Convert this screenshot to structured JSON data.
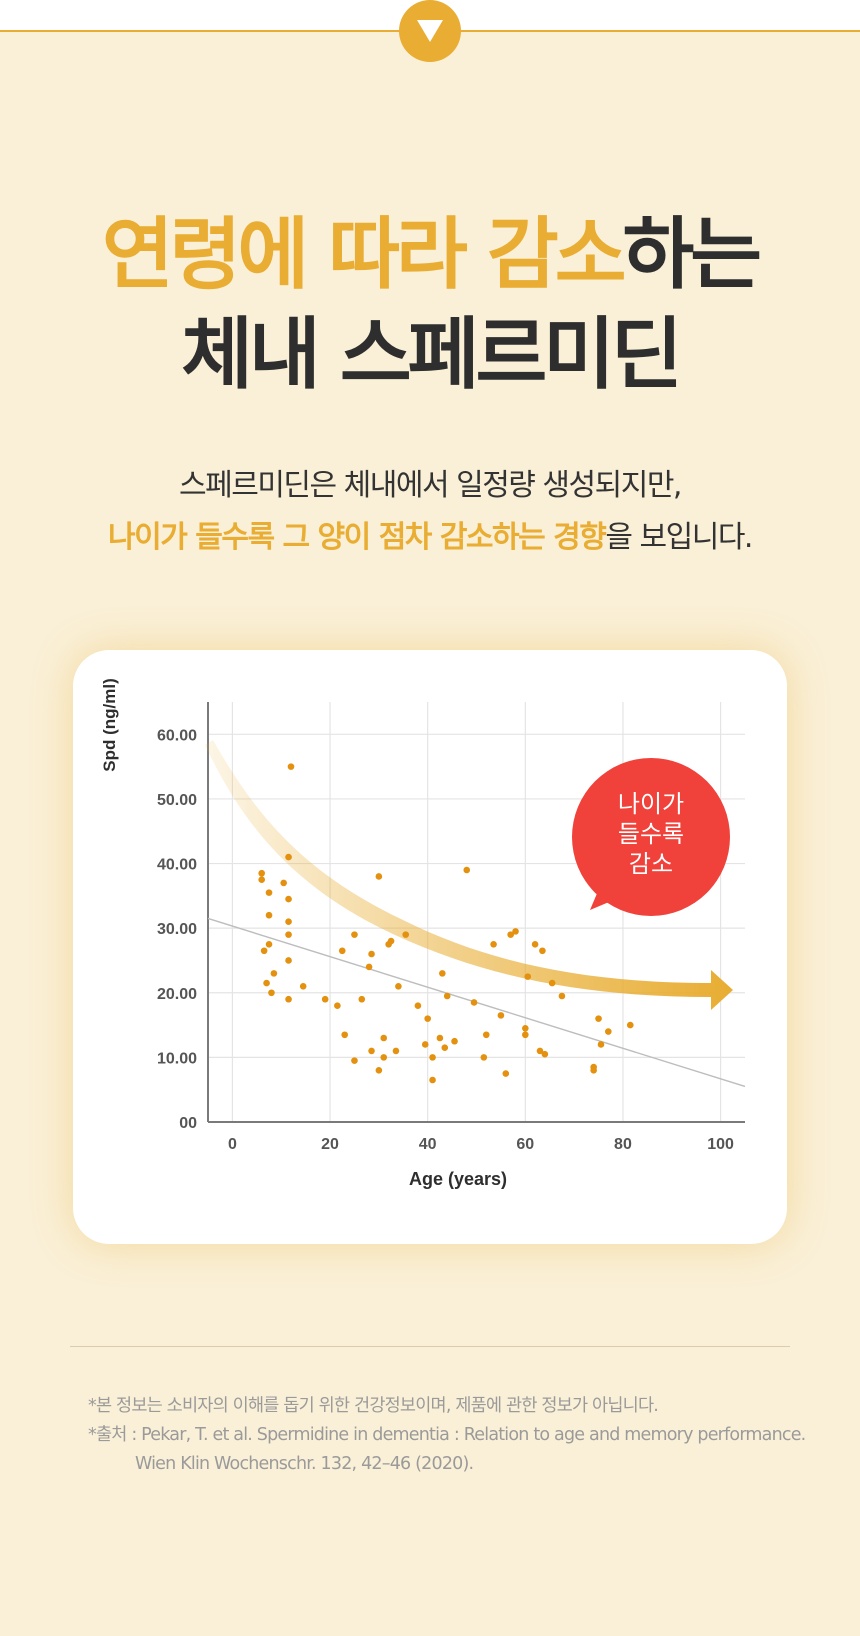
{
  "headline": {
    "line1_accent": "연령에 따라 감소",
    "line1_rest": "하는",
    "line2": "체내 스페르미딘"
  },
  "subcopy": {
    "line1": "스페르미딘은 체내에서 일정량 생성되지만,",
    "line2_accent": "나이가 들수록 그 양이 점차 감소하는 경향",
    "line2_rest": "을 보입니다."
  },
  "colors": {
    "accent": "#e8ad32",
    "bubble": "#f0413a",
    "background": "#faf0d7",
    "point": "#e3910f"
  },
  "chart_data": {
    "type": "scatter",
    "xlabel": "Age (years)",
    "ylabel": "Spd (ng/ml)",
    "xlim": [
      -5,
      105
    ],
    "ylim": [
      0,
      65
    ],
    "xticks": [
      0,
      20,
      40,
      60,
      80,
      100
    ],
    "xtick_labels": [
      "0",
      "20",
      "40",
      "60",
      "80",
      "100"
    ],
    "yticks": [
      0,
      10,
      20,
      30,
      40,
      50,
      60
    ],
    "ytick_labels": [
      "00",
      "10.00",
      "20.00",
      "30.00",
      "40.00",
      "50.00",
      "60.00"
    ],
    "grid": true,
    "points": [
      [
        6,
        37.5
      ],
      [
        6,
        38.5
      ],
      [
        6.5,
        26.5
      ],
      [
        7,
        21.5
      ],
      [
        7.5,
        35.5
      ],
      [
        7.5,
        32
      ],
      [
        7.5,
        27.5
      ],
      [
        8,
        20
      ],
      [
        8.5,
        23
      ],
      [
        10.5,
        37
      ],
      [
        11.5,
        41
      ],
      [
        11.5,
        34.5
      ],
      [
        11.5,
        31
      ],
      [
        11.5,
        29
      ],
      [
        11.5,
        25
      ],
      [
        11.5,
        19
      ],
      [
        12,
        55
      ],
      [
        14.5,
        21
      ],
      [
        19,
        19
      ],
      [
        21.5,
        18
      ],
      [
        22.5,
        26.5
      ],
      [
        23,
        13.5
      ],
      [
        25,
        29
      ],
      [
        25,
        9.5
      ],
      [
        26.5,
        19
      ],
      [
        28,
        24
      ],
      [
        28.5,
        26
      ],
      [
        28.5,
        11
      ],
      [
        30,
        38
      ],
      [
        30,
        8
      ],
      [
        31,
        10
      ],
      [
        31,
        13
      ],
      [
        32,
        27.5
      ],
      [
        32.5,
        28
      ],
      [
        33.5,
        11
      ],
      [
        34,
        21
      ],
      [
        35.5,
        29
      ],
      [
        38,
        18
      ],
      [
        39.5,
        12
      ],
      [
        40,
        16
      ],
      [
        41,
        10
      ],
      [
        41,
        6.5
      ],
      [
        42.5,
        13
      ],
      [
        43,
        23
      ],
      [
        43.5,
        11.5
      ],
      [
        44,
        19.5
      ],
      [
        45.5,
        12.5
      ],
      [
        48,
        39
      ],
      [
        49.5,
        18.5
      ],
      [
        51.5,
        10
      ],
      [
        52,
        13.5
      ],
      [
        53.5,
        27.5
      ],
      [
        55,
        16.5
      ],
      [
        56,
        7.5
      ],
      [
        57,
        29
      ],
      [
        58,
        29.5
      ],
      [
        60,
        13.5
      ],
      [
        60,
        14.5
      ],
      [
        60.5,
        22.5
      ],
      [
        62,
        27.5
      ],
      [
        63,
        11
      ],
      [
        63.5,
        26.5
      ],
      [
        64,
        10.5
      ],
      [
        65.5,
        21.5
      ],
      [
        67.5,
        19.5
      ],
      [
        74,
        8
      ],
      [
        74,
        8.5
      ],
      [
        75,
        16
      ],
      [
        75.5,
        12
      ],
      [
        77,
        14
      ],
      [
        81.5,
        15
      ]
    ],
    "trendline": [
      [
        -5,
        31.5
      ],
      [
        105,
        5.5
      ]
    ],
    "callout": "나이가\n들수록\n감소"
  },
  "footnotes": {
    "note1": "*본 정보는 소비자의 이해를 돕기 위한 건강정보이며, 제품에 관한 정보가 아닙니다.",
    "source_prefix": "*출처 : Pekar, T. et al. Spermidine in dementia : Relation to age and memory performance.",
    "source_line2": "Wien Klin Wochenschr. 132, 42–46 (2020)."
  }
}
